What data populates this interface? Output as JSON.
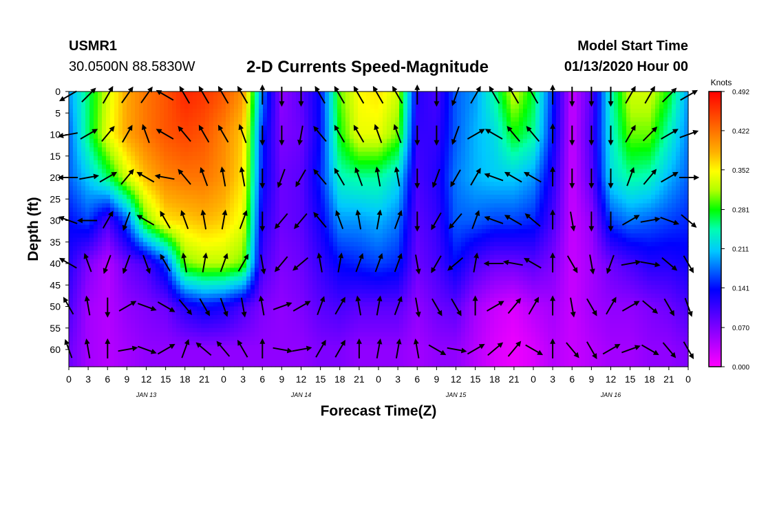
{
  "header": {
    "station": "USMR1",
    "coordinates": "30.0500N 88.5830W",
    "title": "2-D Currents Speed-Magnitude",
    "model_start_label": "Model Start Time",
    "model_start_value": "01/13/2020 Hour 00"
  },
  "chart_data": {
    "type": "heatmap",
    "title": "2-D Currents Speed-Magnitude",
    "xlabel": "Forecast Time(Z)",
    "ylabel": "Depth (ft)",
    "x_tick_labels": [
      "0",
      "3",
      "6",
      "9",
      "12",
      "15",
      "18",
      "21",
      "0",
      "3",
      "6",
      "9",
      "12",
      "15",
      "18",
      "21",
      "0",
      "3",
      "6",
      "9",
      "12",
      "15",
      "18",
      "21",
      "0",
      "3",
      "6",
      "9",
      "12",
      "15",
      "18",
      "21",
      "0"
    ],
    "x_range_hours": [
      0,
      96
    ],
    "day_labels": [
      {
        "label": "JAN 13",
        "hour": 12
      },
      {
        "label": "JAN 14",
        "hour": 36
      },
      {
        "label": "JAN 15",
        "hour": 60
      },
      {
        "label": "JAN 16",
        "hour": 84
      }
    ],
    "y_tick_labels": [
      "0",
      "5",
      "10",
      "15",
      "20",
      "25",
      "30",
      "35",
      "40",
      "45",
      "50",
      "55",
      "60"
    ],
    "y_range_ft": [
      0,
      64
    ],
    "colorbar": {
      "label": "Knots",
      "ticks": [
        "0.492",
        "0.422",
        "0.352",
        "0.281",
        "0.211",
        "0.141",
        "0.070",
        "0.000"
      ],
      "range": [
        0,
        0.492
      ]
    },
    "speed_grid_depths_ft": [
      0,
      10,
      20,
      30,
      40,
      50,
      60
    ],
    "speed_grid_hours": [
      0,
      3,
      6,
      9,
      12,
      15,
      18,
      21,
      24,
      27,
      30,
      33,
      36,
      39,
      42,
      45,
      48,
      51,
      54,
      57,
      60,
      63,
      66,
      69,
      72,
      75,
      78,
      81,
      84,
      87,
      90,
      93,
      96
    ],
    "speed_knots": [
      [
        0.19,
        0.26,
        0.33,
        0.39,
        0.42,
        0.44,
        0.47,
        0.46,
        0.44,
        0.4,
        0.18,
        0.06,
        0.09,
        0.14,
        0.3,
        0.35,
        0.36,
        0.33,
        0.12,
        0.1,
        0.17,
        0.19,
        0.25,
        0.33,
        0.27,
        0.15,
        0.03,
        0.09,
        0.24,
        0.33,
        0.33,
        0.28,
        0.19
      ],
      [
        0.17,
        0.26,
        0.34,
        0.39,
        0.42,
        0.44,
        0.45,
        0.44,
        0.41,
        0.37,
        0.15,
        0.07,
        0.08,
        0.14,
        0.28,
        0.34,
        0.34,
        0.3,
        0.11,
        0.11,
        0.17,
        0.2,
        0.22,
        0.28,
        0.25,
        0.14,
        0.03,
        0.1,
        0.23,
        0.3,
        0.3,
        0.24,
        0.18
      ],
      [
        0.17,
        0.21,
        0.26,
        0.33,
        0.38,
        0.41,
        0.42,
        0.42,
        0.4,
        0.36,
        0.14,
        0.08,
        0.09,
        0.15,
        0.24,
        0.25,
        0.25,
        0.22,
        0.1,
        0.12,
        0.18,
        0.2,
        0.21,
        0.21,
        0.19,
        0.12,
        0.03,
        0.09,
        0.22,
        0.25,
        0.24,
        0.2,
        0.17
      ],
      [
        0.14,
        0.16,
        0.1,
        0.17,
        0.3,
        0.36,
        0.37,
        0.38,
        0.37,
        0.34,
        0.12,
        0.08,
        0.09,
        0.13,
        0.19,
        0.19,
        0.2,
        0.18,
        0.09,
        0.11,
        0.17,
        0.17,
        0.16,
        0.16,
        0.15,
        0.1,
        0.03,
        0.06,
        0.16,
        0.18,
        0.17,
        0.16,
        0.15
      ],
      [
        0.12,
        0.07,
        0.04,
        0.08,
        0.1,
        0.16,
        0.3,
        0.32,
        0.32,
        0.3,
        0.1,
        0.07,
        0.08,
        0.11,
        0.14,
        0.15,
        0.16,
        0.15,
        0.08,
        0.1,
        0.14,
        0.1,
        0.08,
        0.08,
        0.09,
        0.07,
        0.03,
        0.05,
        0.08,
        0.1,
        0.12,
        0.12,
        0.13
      ],
      [
        0.1,
        0.05,
        0.04,
        0.06,
        0.07,
        0.08,
        0.12,
        0.14,
        0.13,
        0.1,
        0.07,
        0.06,
        0.07,
        0.09,
        0.1,
        0.09,
        0.09,
        0.09,
        0.06,
        0.08,
        0.09,
        0.05,
        0.03,
        0.02,
        0.04,
        0.05,
        0.03,
        0.05,
        0.06,
        0.06,
        0.07,
        0.08,
        0.1
      ],
      [
        0.08,
        0.05,
        0.04,
        0.05,
        0.06,
        0.06,
        0.06,
        0.06,
        0.06,
        0.06,
        0.06,
        0.06,
        0.06,
        0.07,
        0.07,
        0.06,
        0.06,
        0.06,
        0.05,
        0.06,
        0.06,
        0.04,
        0.02,
        0.01,
        0.02,
        0.04,
        0.03,
        0.04,
        0.05,
        0.05,
        0.06,
        0.06,
        0.07
      ]
    ],
    "vector_direction_deg": [
      [
        240,
        45,
        30,
        35,
        35,
        300,
        330,
        330,
        330,
        330,
        0,
        180,
        180,
        330,
        330,
        330,
        330,
        330,
        0,
        180,
        200,
        30,
        330,
        330,
        330,
        0,
        180,
        180,
        180,
        30,
        30,
        45,
        60
      ],
      [
        260,
        60,
        40,
        30,
        340,
        300,
        320,
        330,
        330,
        340,
        180,
        180,
        190,
        320,
        330,
        330,
        340,
        340,
        180,
        180,
        200,
        60,
        300,
        320,
        320,
        0,
        180,
        180,
        180,
        30,
        45,
        60,
        70
      ],
      [
        270,
        80,
        60,
        40,
        300,
        280,
        320,
        340,
        350,
        350,
        180,
        200,
        210,
        320,
        330,
        340,
        350,
        350,
        180,
        200,
        210,
        30,
        290,
        300,
        300,
        0,
        180,
        180,
        180,
        20,
        40,
        60,
        90
      ],
      [
        290,
        270,
        30,
        200,
        300,
        330,
        340,
        350,
        10,
        20,
        180,
        220,
        220,
        320,
        340,
        350,
        10,
        20,
        180,
        210,
        220,
        20,
        290,
        300,
        310,
        0,
        170,
        180,
        180,
        60,
        80,
        110,
        130
      ],
      [
        300,
        340,
        200,
        200,
        160,
        330,
        350,
        10,
        20,
        30,
        170,
        220,
        230,
        350,
        10,
        20,
        20,
        20,
        170,
        210,
        230,
        10,
        270,
        280,
        300,
        0,
        150,
        170,
        200,
        80,
        100,
        130,
        150
      ],
      [
        330,
        350,
        180,
        60,
        110,
        120,
        140,
        150,
        160,
        170,
        350,
        70,
        60,
        20,
        30,
        350,
        10,
        20,
        170,
        150,
        150,
        0,
        60,
        40,
        30,
        0,
        170,
        150,
        30,
        60,
        130,
        150,
        160
      ],
      [
        340,
        350,
        0,
        80,
        110,
        60,
        20,
        310,
        320,
        330,
        0,
        100,
        80,
        30,
        30,
        0,
        10,
        10,
        350,
        120,
        100,
        60,
        50,
        40,
        120,
        0,
        140,
        150,
        60,
        70,
        120,
        140,
        150
      ]
    ]
  }
}
